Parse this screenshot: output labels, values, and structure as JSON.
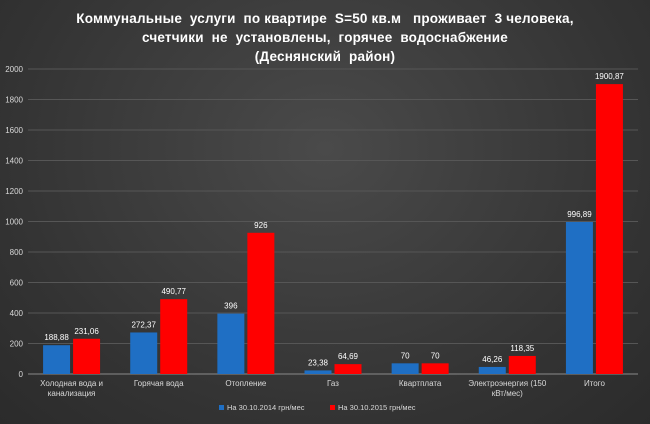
{
  "chart_data": {
    "type": "bar",
    "title_lines": [
      "Коммунальные  услуги  по квартире  S=50 кв.м   проживает  3 человека,",
      "счетчики  не  установлены,  горячее  водоснабжение",
      "(Деснянский  район)"
    ],
    "xlabel": "",
    "ylabel": "",
    "ylim": [
      0,
      2000
    ],
    "yticks": [
      0,
      200,
      400,
      600,
      800,
      1000,
      1200,
      1400,
      1600,
      1800,
      2000
    ],
    "grid": true,
    "legend_position": "bottom",
    "categories": [
      [
        "Холодная вода и",
        "канализация"
      ],
      [
        "Горячая вода"
      ],
      [
        "Отопление"
      ],
      [
        "Газ"
      ],
      [
        "Квартплата"
      ],
      [
        "Электроэнергия (150",
        "кВт/мес)"
      ],
      [
        "Итого"
      ]
    ],
    "series": [
      {
        "name": "На 30.10.2014 грн/мес",
        "color": "#1f6fc4",
        "values": [
          188.88,
          272.37,
          396,
          23.38,
          70,
          46.26,
          996.89
        ],
        "labels": [
          "188,88",
          "272,37",
          "396",
          "23,38",
          "70",
          "46,26",
          "996,89"
        ]
      },
      {
        "name": "На 30.10.2015 грн/мес",
        "color": "#ff0000",
        "values": [
          231.06,
          490.77,
          926,
          64.69,
          70,
          118.35,
          1900.87
        ],
        "labels": [
          "231,06",
          "490,77",
          "926",
          "64,69",
          "70",
          "118,35",
          "1900,87"
        ]
      }
    ]
  }
}
